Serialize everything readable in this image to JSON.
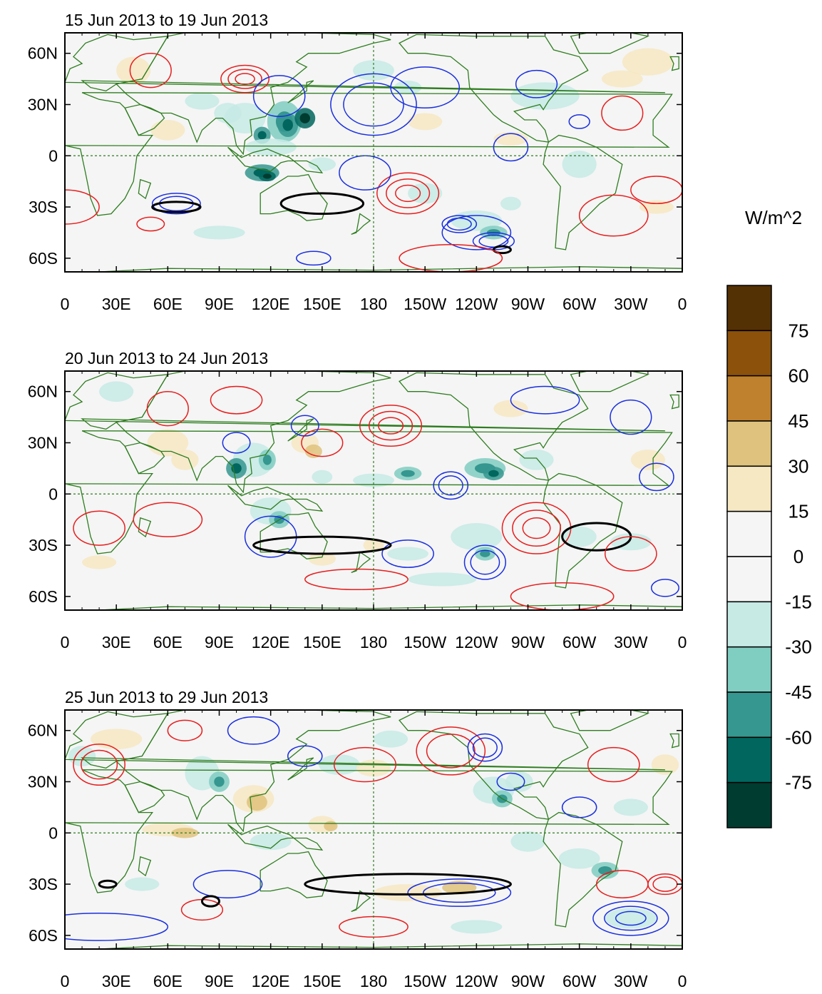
{
  "colors": {
    "land": "#2e7d1f",
    "positive_contour": "#e81d1d",
    "negative_contour": "#1a2fe0",
    "bold_contour": "#000000",
    "equator_line": "#2e7d1f"
  },
  "x_ticks": [
    "0",
    "30E",
    "60E",
    "90E",
    "120E",
    "150E",
    "180",
    "150W",
    "120W",
    "90W",
    "60W",
    "30W",
    "0"
  ],
  "y_ticks": [
    "60N",
    "30N",
    "0",
    "30S",
    "60S"
  ],
  "panels": [
    {
      "title": "15 Jun 2013 to 19 Jun 2013"
    },
    {
      "title": "20 Jun 2013 to 24 Jun 2013"
    },
    {
      "title": "25 Jun 2013 to 29 Jun 2013"
    }
  ],
  "colorbar": {
    "title": "W/m^2",
    "labels": [
      "75",
      "60",
      "45",
      "30",
      "15",
      "0",
      "-15",
      "-30",
      "-45",
      "-60",
      "-75"
    ],
    "colors": [
      "#543005",
      "#8c510a",
      "#bf812d",
      "#dfc27d",
      "#f6e8c3",
      "#f5f5f5",
      "#f5f5f5",
      "#c7eae5",
      "#80cdc1",
      "#35978f",
      "#01665e",
      "#003c30"
    ]
  }
}
